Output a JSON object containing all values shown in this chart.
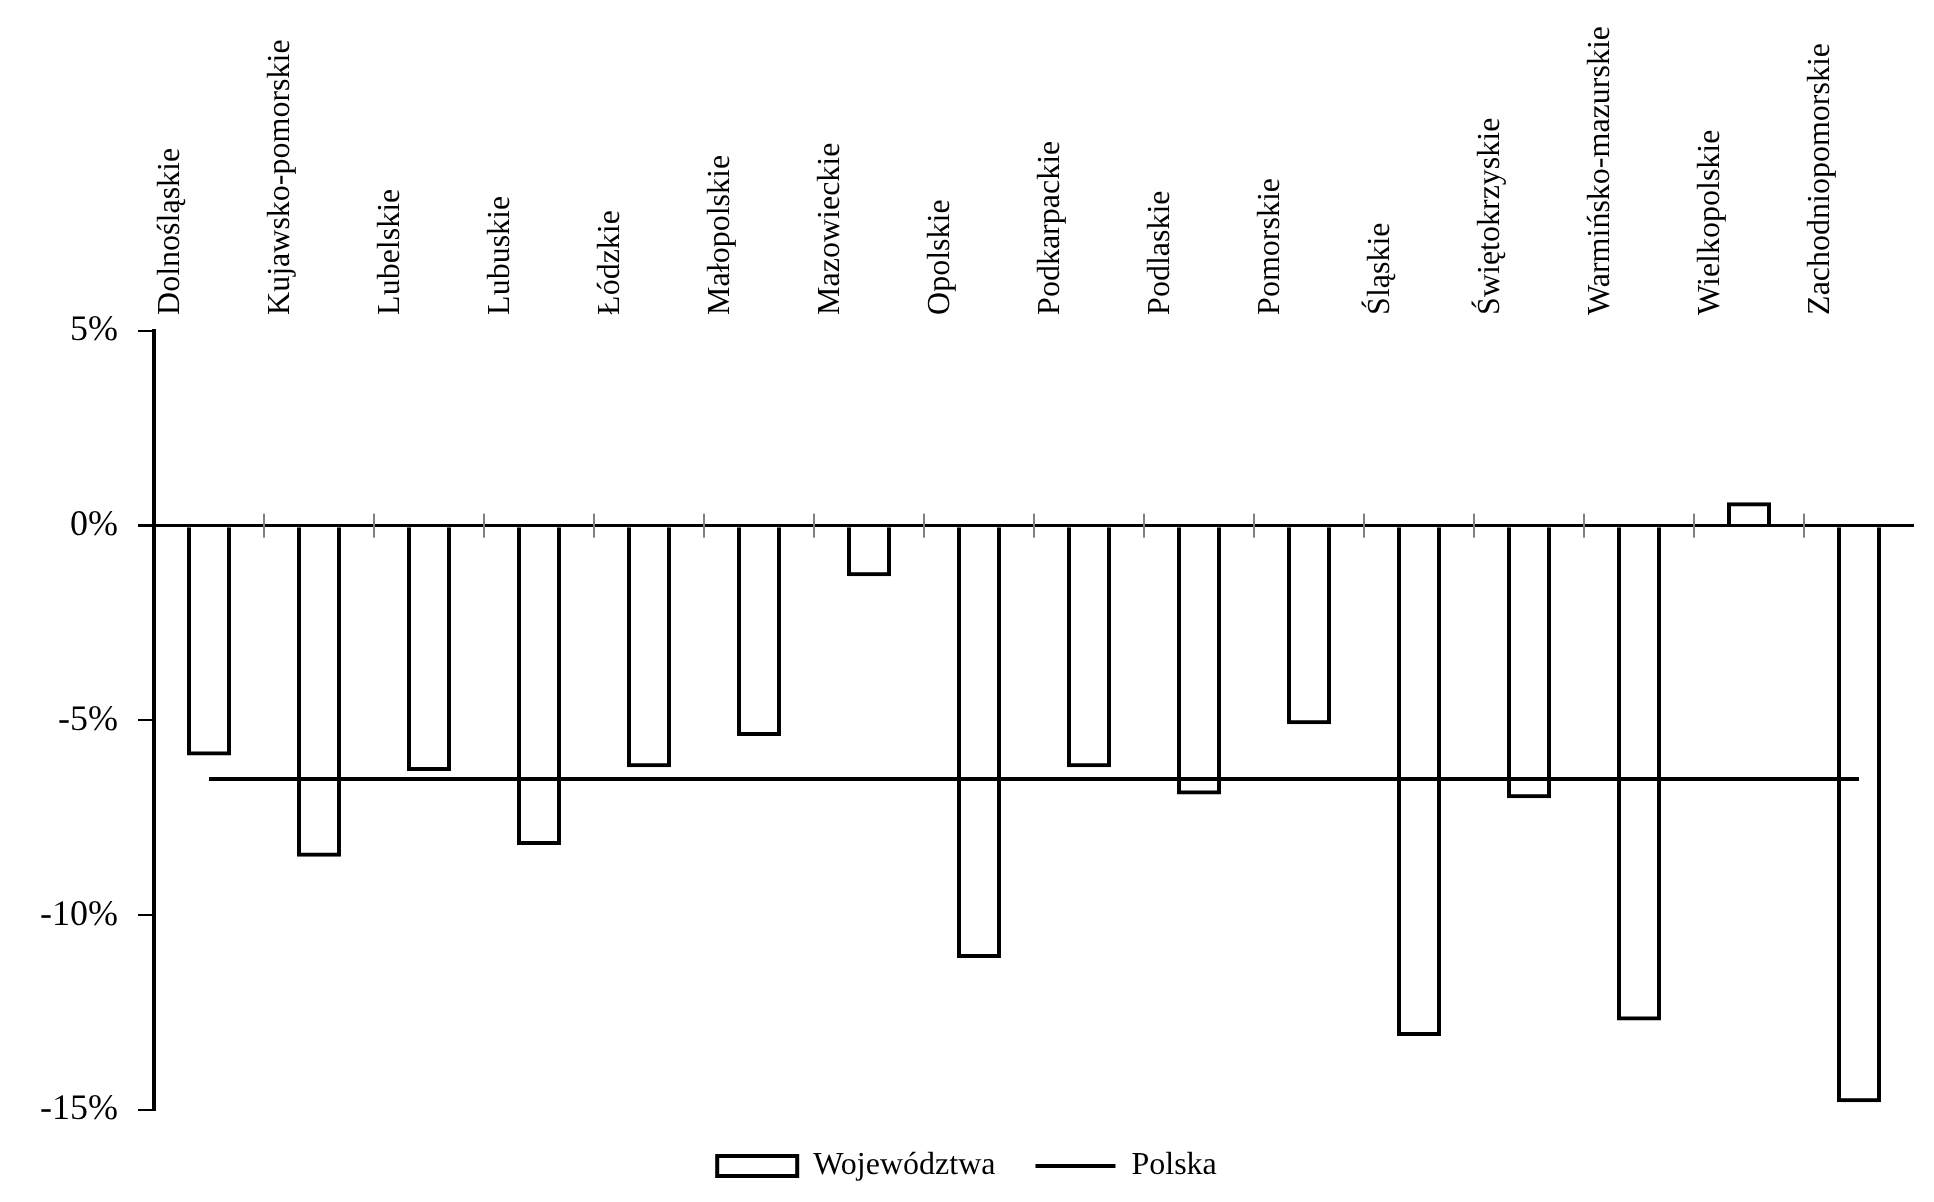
{
  "chart_data": {
    "type": "bar",
    "categories": [
      "Dolnośląskie",
      "Kujawsko-pomorskie",
      "Lubelskie",
      "Lubuskie",
      "Łódzkie",
      "Małopolskie",
      "Mazowieckie",
      "Opolskie",
      "Podkarpackie",
      "Podlaskie",
      "Pomorskie",
      "Śląskie",
      "Świętokrzyskie",
      "Warmińsko-mazurskie",
      "Wielkopolskie",
      "Zachodniopomorskie"
    ],
    "series": [
      {
        "name": "Województwa",
        "color": "#000000",
        "values": [
          -5.9,
          -8.5,
          -6.3,
          -8.2,
          -6.2,
          -5.4,
          -1.3,
          -11.1,
          -6.2,
          -6.9,
          -5.1,
          -13.1,
          -7.0,
          -12.7,
          0.6,
          -14.8
        ]
      },
      {
        "name": "Polska",
        "type": "line",
        "color": "#000000",
        "values": [
          -6.5,
          -6.5,
          -6.5,
          -6.5,
          -6.5,
          -6.5,
          -6.5,
          -6.5,
          -6.5,
          -6.5,
          -6.5,
          -6.5,
          -6.5,
          -6.5,
          -6.5,
          -6.5
        ]
      }
    ],
    "ylim": [
      -15,
      5
    ],
    "yticks": [
      {
        "value": -15,
        "label": "-15%"
      },
      {
        "value": -10,
        "label": "-10%"
      },
      {
        "value": -5,
        "label": "-5%"
      },
      {
        "value": 0,
        "label": "0%"
      },
      {
        "value": 5,
        "label": "5%"
      }
    ],
    "legend": "bottom",
    "marker": "none",
    "grid": false
  }
}
